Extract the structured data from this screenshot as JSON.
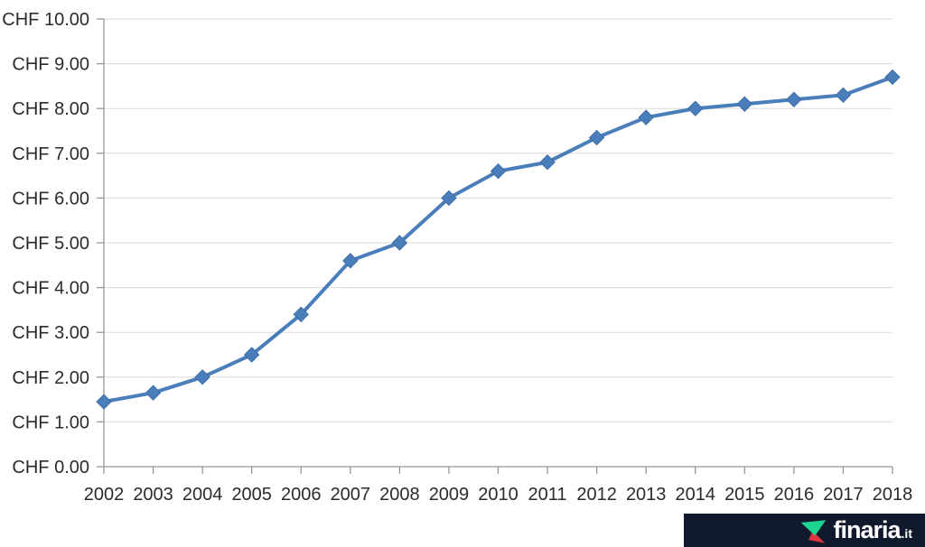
{
  "chart_data": {
    "type": "line",
    "categories": [
      "2002",
      "2003",
      "2004",
      "2005",
      "2006",
      "2007",
      "2008",
      "2009",
      "2010",
      "2011",
      "2012",
      "2013",
      "2014",
      "2015",
      "2016",
      "2017",
      "2018"
    ],
    "values": [
      1.45,
      1.65,
      2.0,
      2.5,
      3.4,
      4.6,
      5.0,
      6.0,
      6.6,
      6.8,
      7.35,
      7.8,
      8.0,
      8.1,
      8.2,
      8.3,
      8.7
    ],
    "y_tick_labels": [
      "CHF 0.00",
      "CHF 1.00",
      "CHF 2.00",
      "CHF 3.00",
      "CHF 4.00",
      "CHF 5.00",
      "CHF 6.00",
      "CHF 7.00",
      "CHF 8.00",
      "CHF 9.00",
      "CHF 10.00"
    ],
    "ylim": [
      0,
      10
    ],
    "y_step": 1,
    "xlabel": "",
    "ylabel": "",
    "grid": true,
    "legend": false,
    "marker": "diamond"
  },
  "logo": {
    "brand": "finaria",
    "tld": ".it"
  },
  "colors": {
    "background": "#FFFFFF",
    "line": "#4A7EBB",
    "marker_fill": "#4A7EBB",
    "marker_stroke": "#3E6DA5",
    "grid": "#D9D9D9",
    "axis": "#969696",
    "tick_label": "#2B2B2B",
    "logo_bar_bg": "#101A2C",
    "logo_green": "#1ED492",
    "logo_red": "#E0333E",
    "logo_text": "#FFFFFF"
  }
}
